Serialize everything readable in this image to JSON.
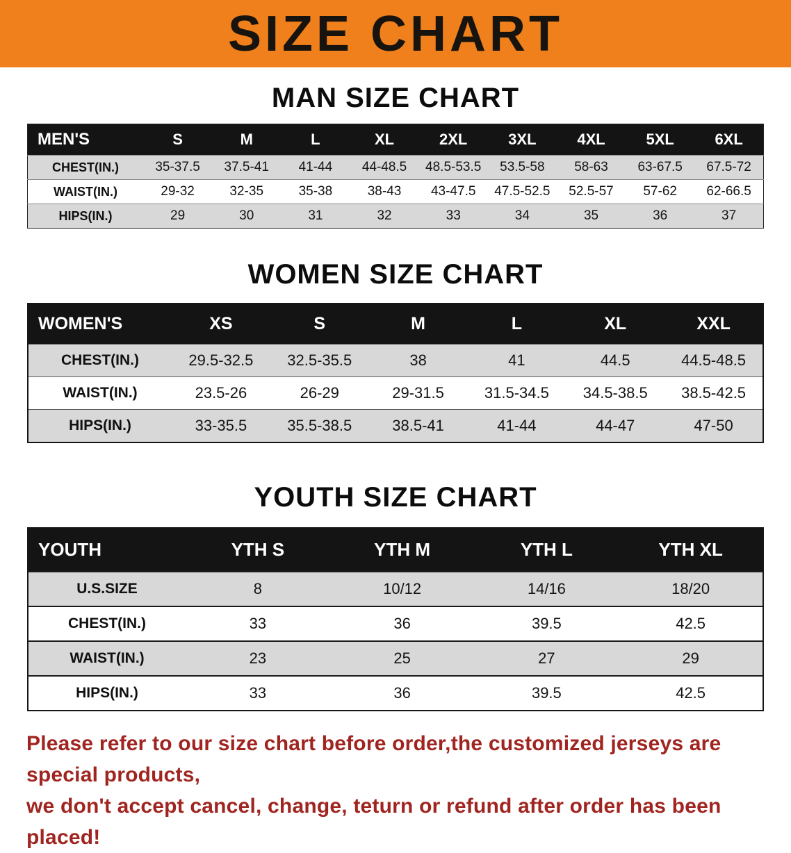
{
  "banner": {
    "title": "SIZE CHART"
  },
  "colors": {
    "banner_bg": "#f0801b",
    "header_bg": "#141414",
    "stripe": "#d8d8d8",
    "disclaimer_red": "#a02520"
  },
  "chart_data": [
    {
      "type": "table",
      "title": "MAN SIZE CHART",
      "columns": [
        "MEN'S",
        "S",
        "M",
        "L",
        "XL",
        "2XL",
        "3XL",
        "4XL",
        "5XL",
        "6XL"
      ],
      "rows": [
        [
          "CHEST(IN.)",
          "35-37.5",
          "37.5-41",
          "41-44",
          "44-48.5",
          "48.5-53.5",
          "53.5-58",
          "58-63",
          "63-67.5",
          "67.5-72"
        ],
        [
          "WAIST(IN.)",
          "29-32",
          "32-35",
          "35-38",
          "38-43",
          "43-47.5",
          "47.5-52.5",
          "52.5-57",
          "57-62",
          "62-66.5"
        ],
        [
          "HIPS(IN.)",
          "29",
          "30",
          "31",
          "32",
          "33",
          "34",
          "35",
          "36",
          "37"
        ]
      ]
    },
    {
      "type": "table",
      "title": "WOMEN SIZE CHART",
      "columns": [
        "WOMEN'S",
        "XS",
        "S",
        "M",
        "L",
        "XL",
        "XXL"
      ],
      "rows": [
        [
          "CHEST(IN.)",
          "29.5-32.5",
          "32.5-35.5",
          "38",
          "41",
          "44.5",
          "44.5-48.5"
        ],
        [
          "WAIST(IN.)",
          "23.5-26",
          "26-29",
          "29-31.5",
          "31.5-34.5",
          "34.5-38.5",
          "38.5-42.5"
        ],
        [
          "HIPS(IN.)",
          "33-35.5",
          "35.5-38.5",
          "38.5-41",
          "41-44",
          "44-47",
          "47-50"
        ]
      ]
    },
    {
      "type": "table",
      "title": "YOUTH SIZE CHART",
      "columns": [
        "YOUTH",
        "YTH S",
        "YTH M",
        "YTH L",
        "YTH XL"
      ],
      "rows": [
        [
          "U.S.SIZE",
          "8",
          "10/12",
          "14/16",
          "18/20"
        ],
        [
          "CHEST(IN.)",
          "33",
          "36",
          "39.5",
          "42.5"
        ],
        [
          "WAIST(IN.)",
          "23",
          "25",
          "27",
          "29"
        ],
        [
          "HIPS(IN.)",
          "33",
          "36",
          "39.5",
          "42.5"
        ]
      ]
    }
  ],
  "disclaimer": {
    "line1": "Please refer to our size chart before order,the customized jerseys are special products,",
    "line2": "we don't accept cancel, change, teturn or refund after order has been placed!"
  }
}
